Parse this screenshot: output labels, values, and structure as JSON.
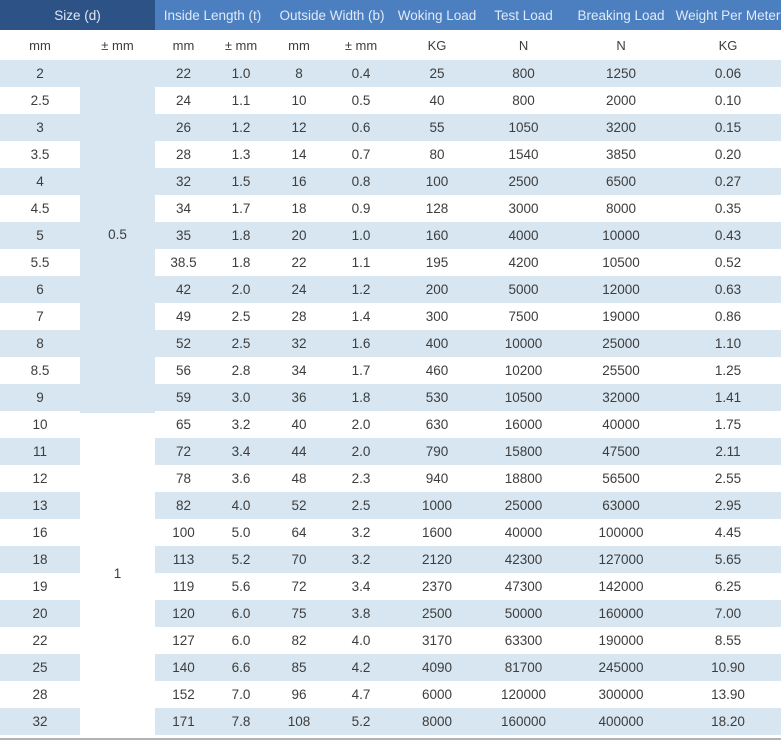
{
  "colors": {
    "header_dark": "#2d5286",
    "header_blue": "#4c7fc0",
    "header_text": "#dfeaf6",
    "row_stripe": "#d7e6f1",
    "body_text": "#3d3d3d",
    "bottom_rule": "#b3b3b3"
  },
  "chart_data": {
    "type": "table",
    "header_groups": [
      {
        "label": "Size (d)",
        "colspan": 2,
        "variant": "dark"
      },
      {
        "label": "Inside Length (t)",
        "colspan": 2,
        "variant": "blue"
      },
      {
        "label": "Outside Width (b)",
        "colspan": 2,
        "variant": "blue"
      },
      {
        "label": "Woking Load",
        "colspan": 1,
        "variant": "blue"
      },
      {
        "label": "Test Load",
        "colspan": 1,
        "variant": "blue"
      },
      {
        "label": "Breaking Load",
        "colspan": 1,
        "variant": "blue"
      },
      {
        "label": "Weight Per Meter",
        "colspan": 1,
        "variant": "blue"
      }
    ],
    "unit_row": [
      "mm",
      "± mm",
      "mm",
      "± mm",
      "mm",
      "± mm",
      "KG",
      "N",
      "N",
      "KG"
    ],
    "column_keys": [
      "size-mm",
      "size-tolerance",
      "inside-length-mm",
      "inside-length-tolerance",
      "outside-width-mm",
      "outside-width-tolerance",
      "working-load",
      "test-load",
      "breaking-load",
      "weight-per-meter"
    ],
    "size_tolerance_groups": [
      {
        "tolerance": "0.5",
        "row_count": 13
      },
      {
        "tolerance": "1",
        "row_count": 12
      }
    ],
    "rows": [
      [
        "2",
        "22",
        "1.0",
        "8",
        "0.4",
        "25",
        "800",
        "1250",
        "0.06"
      ],
      [
        "2.5",
        "24",
        "1.1",
        "10",
        "0.5",
        "40",
        "800",
        "2000",
        "0.10"
      ],
      [
        "3",
        "26",
        "1.2",
        "12",
        "0.6",
        "55",
        "1050",
        "3200",
        "0.15"
      ],
      [
        "3.5",
        "28",
        "1.3",
        "14",
        "0.7",
        "80",
        "1540",
        "3850",
        "0.20"
      ],
      [
        "4",
        "32",
        "1.5",
        "16",
        "0.8",
        "100",
        "2500",
        "6500",
        "0.27"
      ],
      [
        "4.5",
        "34",
        "1.7",
        "18",
        "0.9",
        "128",
        "3000",
        "8000",
        "0.35"
      ],
      [
        "5",
        "35",
        "1.8",
        "20",
        "1.0",
        "160",
        "4000",
        "10000",
        "0.43"
      ],
      [
        "5.5",
        "38.5",
        "1.8",
        "22",
        "1.1",
        "195",
        "4200",
        "10500",
        "0.52"
      ],
      [
        "6",
        "42",
        "2.0",
        "24",
        "1.2",
        "200",
        "5000",
        "12000",
        "0.63"
      ],
      [
        "7",
        "49",
        "2.5",
        "28",
        "1.4",
        "300",
        "7500",
        "19000",
        "0.86"
      ],
      [
        "8",
        "52",
        "2.5",
        "32",
        "1.6",
        "400",
        "10000",
        "25000",
        "1.10"
      ],
      [
        "8.5",
        "56",
        "2.8",
        "34",
        "1.7",
        "460",
        "10200",
        "25500",
        "1.25"
      ],
      [
        "9",
        "59",
        "3.0",
        "36",
        "1.8",
        "530",
        "10500",
        "32000",
        "1.41"
      ],
      [
        "10",
        "65",
        "3.2",
        "40",
        "2.0",
        "630",
        "16000",
        "40000",
        "1.75"
      ],
      [
        "11",
        "72",
        "3.4",
        "44",
        "2.0",
        "790",
        "15800",
        "47500",
        "2.11"
      ],
      [
        "12",
        "78",
        "3.6",
        "48",
        "2.3",
        "940",
        "18800",
        "56500",
        "2.55"
      ],
      [
        "13",
        "82",
        "4.0",
        "52",
        "2.5",
        "1000",
        "25000",
        "63000",
        "2.95"
      ],
      [
        "16",
        "100",
        "5.0",
        "64",
        "3.2",
        "1600",
        "40000",
        "100000",
        "4.45"
      ],
      [
        "18",
        "113",
        "5.2",
        "70",
        "3.2",
        "2120",
        "42300",
        "127000",
        "5.65"
      ],
      [
        "19",
        "119",
        "5.6",
        "72",
        "3.4",
        "2370",
        "47300",
        "142000",
        "6.25"
      ],
      [
        "20",
        "120",
        "6.0",
        "75",
        "3.8",
        "2500",
        "50000",
        "160000",
        "7.00"
      ],
      [
        "22",
        "127",
        "6.0",
        "82",
        "4.0",
        "3170",
        "63300",
        "190000",
        "8.55"
      ],
      [
        "25",
        "140",
        "6.6",
        "85",
        "4.2",
        "4090",
        "81700",
        "245000",
        "10.90"
      ],
      [
        "28",
        "152",
        "7.0",
        "96",
        "4.7",
        "6000",
        "120000",
        "300000",
        "13.90"
      ],
      [
        "32",
        "171",
        "7.8",
        "108",
        "5.2",
        "8000",
        "160000",
        "400000",
        "18.20"
      ]
    ]
  }
}
